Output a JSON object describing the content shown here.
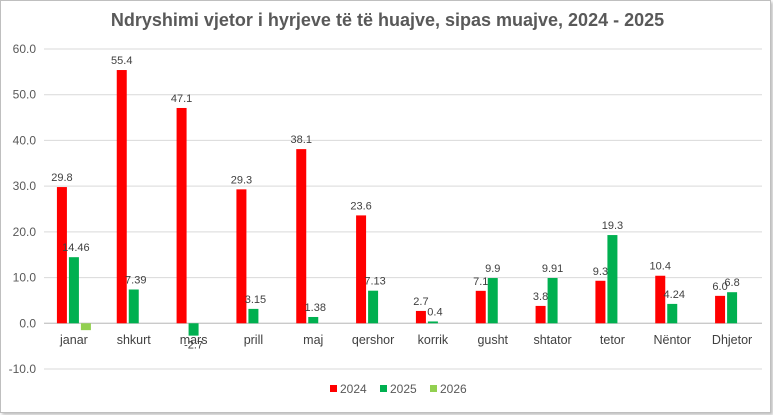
{
  "chart_data": {
    "type": "bar",
    "title": "Ndryshimi vjetor i hyrjeve të të huajve, sipas muajve, 2024 - 2025",
    "categories": [
      "janar",
      "shkurt",
      "mars",
      "prill",
      "maj",
      "qershor",
      "korrik",
      "gusht",
      "shtator",
      "tetor",
      "Nëntor",
      "Dhjetor"
    ],
    "series": [
      {
        "name": "2024",
        "color": "#ff0000",
        "values": [
          29.8,
          55.4,
          47.1,
          29.3,
          38.1,
          23.6,
          2.7,
          7.1,
          3.8,
          9.3,
          10.4,
          6.0
        ],
        "labels": [
          "29.8",
          "55.4",
          "47.1",
          "29.3",
          "38.1",
          "23.6",
          "2.7",
          "7.1",
          "3.8",
          "9.3",
          "10.4",
          "6.0"
        ]
      },
      {
        "name": "2025",
        "color": "#00b050",
        "values": [
          14.46,
          7.39,
          -2.7,
          3.15,
          1.38,
          7.13,
          0.4,
          9.9,
          9.91,
          19.3,
          4.24,
          6.8
        ],
        "labels": [
          "14.46",
          "7.39",
          "-2.7",
          "3.15",
          "1.38",
          "7.13",
          "0.4",
          "9.9",
          "9.91",
          "19.3",
          "4.24",
          "6.8"
        ]
      },
      {
        "name": "2026",
        "color": "#92d050",
        "values": [
          -1.5,
          null,
          null,
          null,
          null,
          null,
          null,
          null,
          null,
          null,
          null,
          null
        ],
        "labels": [
          null,
          null,
          null,
          null,
          null,
          null,
          null,
          null,
          null,
          null,
          null,
          null
        ]
      }
    ],
    "y_ticks": [
      "-10.0",
      "0.0",
      "10.0",
      "20.0",
      "30.0",
      "40.0",
      "50.0",
      "60.0"
    ],
    "ylim": [
      -10,
      60
    ],
    "grid": true,
    "legend_position": "bottom"
  }
}
